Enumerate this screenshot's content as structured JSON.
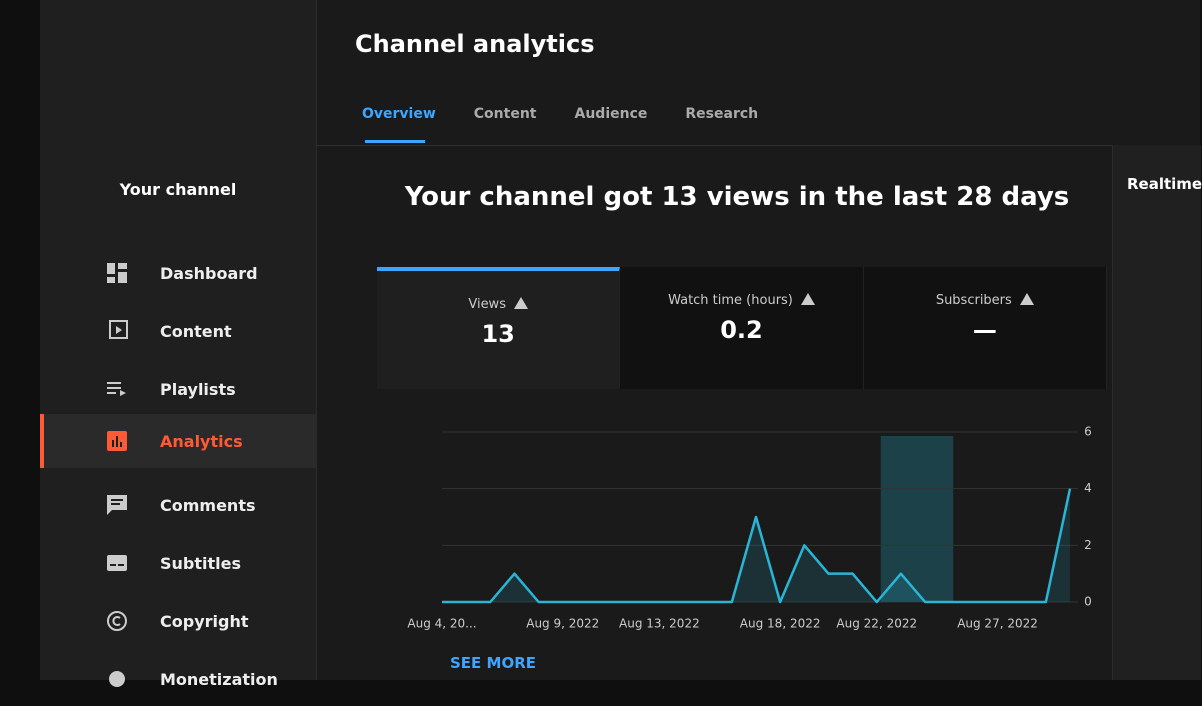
{
  "sidebar": {
    "channel": "Your channel",
    "items": [
      "Dashboard",
      "Content",
      "Playlists",
      "Analytics",
      "Comments",
      "Subtitles",
      "Copyright",
      "Monetization"
    ]
  },
  "header": {
    "title": "Channel analytics",
    "tabs": [
      "Overview",
      "Content",
      "Audience",
      "Research"
    ]
  },
  "summary": {
    "headline": "Your channel got 13 views in the last 28 days",
    "cards": [
      {
        "label": "Views",
        "value": "13"
      },
      {
        "label": "Watch time (hours)",
        "value": "0.2"
      },
      {
        "label": "Subscribers",
        "value": "—"
      }
    ]
  },
  "see_more": "SEE MORE",
  "realtime": {
    "title": "Realtime"
  },
  "chart_data": {
    "type": "line",
    "categories": [
      "Aug 4, 20...",
      null,
      null,
      null,
      null,
      "Aug 9, 2022",
      null,
      null,
      null,
      "Aug 13, 2022",
      null,
      null,
      null,
      null,
      "Aug 18, 2022",
      null,
      null,
      null,
      "Aug 22, 2022",
      null,
      null,
      null,
      null,
      "Aug 27, 2022",
      null,
      null,
      null
    ],
    "series": [
      {
        "name": "Views",
        "color": "#29b6d6",
        "values": [
          0,
          0,
          0,
          1,
          0,
          0,
          0,
          0,
          0,
          0,
          0,
          0,
          0,
          3,
          0,
          2,
          1,
          1,
          0,
          1,
          0,
          0,
          0,
          0,
          0,
          0,
          4
        ]
      }
    ],
    "ylim": [
      0,
      6
    ],
    "yticks": [
      0,
      2,
      4,
      6
    ],
    "grid": true
  }
}
